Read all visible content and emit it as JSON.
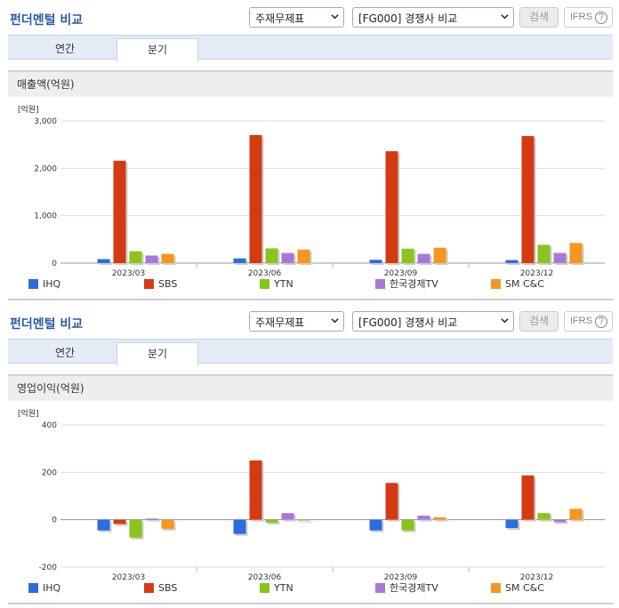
{
  "sections": [
    {
      "title": "펀더멘털 비교",
      "select1": "주재무제표",
      "select2": "[FG000] 경쟁사 비교",
      "search_label": "검색",
      "ifrs_label": "IFRS",
      "ifrs_help": "?",
      "tabs": [
        "연간",
        "분기"
      ],
      "active_tab": "분기",
      "chart_title": "매출액(억원)",
      "unit": "[억원]",
      "legend": [
        "IHQ",
        "SBS",
        "YTN",
        "한국경제TV",
        "SM C&C"
      ]
    },
    {
      "title": "펀더멘털 비교",
      "select1": "주재무제표",
      "select2": "[FG000] 경쟁사 비교",
      "search_label": "검색",
      "ifrs_label": "IFRS",
      "ifrs_help": "?",
      "tabs": [
        "연간",
        "분기"
      ],
      "active_tab": "분기",
      "chart_title": "영업이익(억원)",
      "unit": "[억원]",
      "legend": [
        "IHQ",
        "SBS",
        "YTN",
        "한국경제TV",
        "SM C&C"
      ]
    }
  ],
  "colors": [
    "#2a6ede",
    "#d43b12",
    "#8ac41c",
    "#a878d8",
    "#f5961e"
  ],
  "chart_data": [
    {
      "type": "bar",
      "title": "매출액(억원)",
      "ylabel": "[억원]",
      "categories": [
        "2023/03",
        "2023/06",
        "2023/09",
        "2023/12"
      ],
      "ylim": [
        0,
        3000
      ],
      "yticks": [
        0,
        1000,
        2000,
        3000
      ],
      "ytick_labels": [
        "0",
        "1,000",
        "2,000",
        "3,000"
      ],
      "grid": true,
      "legend_position": "bottom",
      "series": [
        {
          "name": "IHQ",
          "values": [
            85,
            100,
            70,
            65
          ]
        },
        {
          "name": "SBS",
          "values": [
            2160,
            2700,
            2360,
            2680
          ]
        },
        {
          "name": "YTN",
          "values": [
            250,
            310,
            305,
            385
          ]
        },
        {
          "name": "한국경제TV",
          "values": [
            160,
            215,
            195,
            215
          ]
        },
        {
          "name": "SM C&C",
          "values": [
            195,
            285,
            325,
            425
          ]
        }
      ]
    },
    {
      "type": "bar",
      "title": "영업이익(억원)",
      "ylabel": "[억원]",
      "categories": [
        "2023/03",
        "2023/06",
        "2023/09",
        "2023/12"
      ],
      "ylim": [
        -200,
        400
      ],
      "yticks": [
        -200,
        0,
        200,
        400
      ],
      "ytick_labels": [
        "-200",
        "0",
        "200",
        "400"
      ],
      "grid": true,
      "legend_position": "bottom",
      "series": [
        {
          "name": "IHQ",
          "values": [
            -45,
            -60,
            -45,
            -35
          ]
        },
        {
          "name": "SBS",
          "values": [
            -18,
            250,
            155,
            187
          ]
        },
        {
          "name": "YTN",
          "values": [
            -75,
            -12,
            -45,
            28
          ]
        },
        {
          "name": "한국경제TV",
          "values": [
            5,
            28,
            17,
            -10
          ]
        },
        {
          "name": "SM C&C",
          "values": [
            -38,
            0,
            10,
            46
          ]
        }
      ]
    }
  ]
}
